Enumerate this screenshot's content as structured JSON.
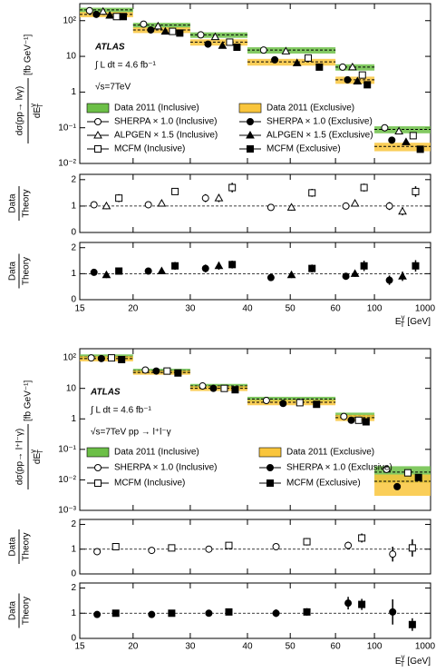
{
  "chart_data": [
    {
      "type": "band",
      "bins": [
        15,
        20,
        30,
        40,
        60,
        100,
        1000
      ],
      "xlim": [
        15,
        1000
      ],
      "xticks": [
        15,
        20,
        30,
        40,
        50,
        60,
        100,
        1000
      ],
      "xlabel": {
        "text": "E",
        "sup": "γ",
        "sub": "T",
        "unit": "[GeV]"
      },
      "main": {
        "ylabel": {
          "numerator": "dσ(pp→ lνγ)",
          "denominator": "dE",
          "sup": "γ",
          "sub": "T",
          "unit": "[fb GeV⁻¹]"
        },
        "log": true,
        "ylim": [
          0.01,
          300
        ],
        "yticks": [
          {
            "value": 0.01,
            "label": "10⁻²"
          },
          {
            "value": 0.1,
            "label": "10⁻¹"
          },
          1,
          10,
          {
            "value": 100,
            "label": "10²"
          }
        ],
        "annotations": [
          "ATLAS",
          "∫ L dt = 4.6 fb⁻¹",
          "√s=7TeV"
        ],
        "series": [
          {
            "name": "Data 2011 (Inclusive)",
            "style": "band",
            "color": "#6cbf47",
            "values": [
              200,
              75,
              40,
              15,
              5,
              0.09
            ],
            "uncertainty": [
              30,
              12,
              7,
              3,
              1,
              0.02
            ]
          },
          {
            "name": "Data 2011 (Exclusive)",
            "style": "band",
            "color": "#f9c53c",
            "values": [
              150,
              55,
              25,
              7,
              2.2,
              0.03
            ],
            "uncertainty": [
              25,
              10,
              5,
              1.5,
              0.5,
              0.008
            ]
          },
          {
            "name": "SHERPA × 1.0 (Inclusive)",
            "marker": "circle-open",
            "values": [
              190,
              80,
              40,
              15,
              5,
              0.1
            ]
          },
          {
            "name": "SHERPA × 1.0 (Exclusive)",
            "marker": "circle-filled",
            "values": [
              150,
              55,
              22,
              8,
              2.2,
              0.045
            ]
          },
          {
            "name": "ALPGEN × 1.5 (Inclusive)",
            "marker": "triangle-open",
            "values": [
              180,
              70,
              35,
              14,
              5,
              0.08
            ]
          },
          {
            "name": "ALPGEN × 1.5 (Exclusive)",
            "marker": "triangle-filled",
            "values": [
              140,
              50,
              20,
              6.5,
              2,
              0.04
            ]
          },
          {
            "name": "MCFM (Inclusive)",
            "marker": "square-open",
            "values": [
              130,
              50,
              25,
              9,
              3,
              0.06
            ]
          },
          {
            "name": "MCFM (Exclusive)",
            "marker": "square-filled",
            "values": [
              130,
              45,
              18,
              5,
              1.6,
              0.025
            ]
          }
        ]
      },
      "ratios": [
        {
          "ylabel": {
            "numerator": "Data",
            "denominator": "Theory"
          },
          "ylim": [
            0,
            2.2
          ],
          "yticks": [
            0,
            1,
            2
          ],
          "reference": 1,
          "series": [
            {
              "marker": "circle-open",
              "values": [
                1.05,
                1.05,
                1.3,
                0.95,
                1.0,
                1.0
              ],
              "errors": [
                0.12,
                0.1,
                0.15,
                0.12,
                0.1,
                0.15
              ]
            },
            {
              "marker": "triangle-open",
              "values": [
                1.0,
                1.1,
                1.3,
                0.95,
                1.1,
                0.8
              ],
              "errors": [
                0.12,
                0.1,
                0.15,
                0.12,
                0.1,
                0.15
              ]
            },
            {
              "marker": "square-open",
              "values": [
                1.3,
                1.55,
                1.7,
                1.5,
                1.7,
                1.55
              ],
              "errors": [
                0.15,
                0.12,
                0.18,
                0.15,
                0.15,
                0.2
              ]
            }
          ]
        },
        {
          "ylabel": {
            "numerator": "Data",
            "denominator": "Theory"
          },
          "ylim": [
            0,
            2.2
          ],
          "yticks": [
            0,
            1,
            2
          ],
          "reference": 1,
          "series": [
            {
              "marker": "circle-filled",
              "values": [
                1.05,
                1.1,
                1.2,
                0.85,
                0.9,
                0.75
              ],
              "errors": [
                0.12,
                0.1,
                0.15,
                0.12,
                0.12,
                0.18
              ]
            },
            {
              "marker": "triangle-filled",
              "values": [
                0.95,
                1.1,
                1.3,
                0.95,
                1.0,
                0.9
              ],
              "errors": [
                0.12,
                0.1,
                0.15,
                0.12,
                0.12,
                0.18
              ]
            },
            {
              "marker": "square-filled",
              "values": [
                1.1,
                1.3,
                1.35,
                1.2,
                1.3,
                1.3
              ],
              "errors": [
                0.12,
                0.15,
                0.15,
                0.15,
                0.2,
                0.22
              ]
            }
          ]
        }
      ]
    },
    {
      "type": "band",
      "bins": [
        15,
        20,
        30,
        40,
        60,
        100,
        1000
      ],
      "xlim": [
        15,
        1000
      ],
      "xticks": [
        15,
        20,
        30,
        40,
        50,
        60,
        100,
        1000
      ],
      "xlabel": {
        "text": "E",
        "sup": "γ",
        "sub": "T",
        "unit": "[GeV]"
      },
      "main": {
        "ylabel": {
          "numerator": "dσ(pp→ l⁺l⁻γ)",
          "denominator": "dE",
          "sup": "γ",
          "sub": "T",
          "unit": "[fb GeV⁻¹]"
        },
        "log": true,
        "ylim": [
          0.001,
          200
        ],
        "yticks": [
          {
            "value": 0.001,
            "label": "10⁻³"
          },
          {
            "value": 0.01,
            "label": "10⁻²"
          },
          {
            "value": 0.1,
            "label": "10⁻¹"
          },
          1,
          10,
          {
            "value": 100,
            "label": "10²"
          }
        ],
        "annotations": [
          "ATLAS",
          "∫ L dt = 4.6 fb⁻¹",
          "√s=7TeV  pp → l⁺l⁻γ"
        ],
        "series": [
          {
            "name": "Data 2011 (Inclusive)",
            "style": "band",
            "color": "#6cbf47",
            "values": [
              110,
              38,
              12,
              4.5,
              1.3,
              0.018
            ],
            "uncertainty": [
              20,
              6,
              2,
              0.8,
              0.3,
              0.01
            ]
          },
          {
            "name": "Data 2011 (Exclusive)",
            "style": "band",
            "color": "#f9c53c",
            "values": [
              95,
              33,
              10,
              3.5,
              1.1,
              0.009
            ],
            "uncertainty": [
              18,
              5,
              1.8,
              0.7,
              0.25,
              0.006
            ]
          },
          {
            "name": "SHERPA × 1.0 (Inclusive)",
            "marker": "circle-open",
            "values": [
              100,
              40,
              12,
              4,
              1.2,
              0.022
            ]
          },
          {
            "name": "SHERPA × 1.0 (Exclusive)",
            "marker": "circle-filled",
            "values": [
              95,
              37,
              10,
              3.2,
              0.9,
              0.006
            ]
          },
          {
            "name": "MCFM (Inclusive)",
            "marker": "square-open",
            "values": [
              100,
              37,
              10,
              3.4,
              0.9,
              0.017
            ]
          },
          {
            "name": "MCFM (Exclusive)",
            "marker": "square-filled",
            "values": [
              88,
              32,
              9,
              3.0,
              0.8,
              0.012
            ]
          }
        ]
      },
      "ratios": [
        {
          "ylabel": {
            "numerator": "Data",
            "denominator": "Theory"
          },
          "ylim": [
            0,
            2.2
          ],
          "yticks": [
            0,
            1,
            2
          ],
          "reference": 1,
          "series": [
            {
              "marker": "circle-open",
              "values": [
                0.9,
                0.95,
                1.0,
                1.1,
                1.15,
                0.8
              ],
              "errors": [
                0.1,
                0.08,
                0.1,
                0.12,
                0.15,
                0.3
              ]
            },
            {
              "marker": "square-open",
              "values": [
                1.1,
                1.05,
                1.15,
                1.3,
                1.45,
                1.05
              ],
              "errors": [
                0.1,
                0.08,
                0.1,
                0.15,
                0.18,
                0.35
              ]
            }
          ]
        },
        {
          "ylabel": {
            "numerator": "Data",
            "denominator": "Theory"
          },
          "ylim": [
            0,
            2.2
          ],
          "yticks": [
            0,
            1,
            2
          ],
          "reference": 1,
          "series": [
            {
              "marker": "circle-filled",
              "values": [
                0.95,
                0.95,
                1.0,
                1.0,
                1.4,
                1.05
              ],
              "errors": [
                0.08,
                0.08,
                0.1,
                0.15,
                0.25,
                0.5
              ]
            },
            {
              "marker": "square-filled",
              "values": [
                1.0,
                1.0,
                1.05,
                1.05,
                1.35,
                0.55
              ],
              "errors": [
                0.08,
                0.08,
                0.1,
                0.15,
                0.22,
                0.25
              ]
            }
          ]
        }
      ]
    }
  ]
}
